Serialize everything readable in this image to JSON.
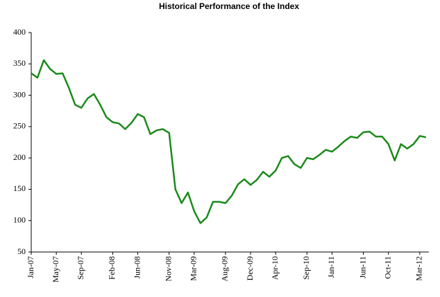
{
  "chart_data": {
    "type": "line",
    "title": "Historical Performance of the Index",
    "categories": [
      "Jan-07",
      null,
      null,
      null,
      "May-07",
      null,
      null,
      null,
      "Sep-07",
      null,
      null,
      null,
      null,
      "Feb-08",
      null,
      null,
      null,
      "Jun-08",
      null,
      null,
      null,
      null,
      "Nov-08",
      null,
      null,
      null,
      "Mar-09",
      null,
      null,
      null,
      null,
      "Aug-09",
      null,
      null,
      null,
      "Dec-09",
      null,
      null,
      null,
      "Apr-10",
      null,
      null,
      null,
      null,
      "Sep-10",
      null,
      null,
      null,
      "Jan-11",
      null,
      null,
      null,
      null,
      "Jun-11",
      null,
      null,
      null,
      "Oct-11",
      null,
      null,
      null,
      null,
      "Mar-12",
      null
    ],
    "series": [
      {
        "name": "Index",
        "color": "#1a8a1a",
        "values": [
          335,
          328,
          356,
          342,
          334,
          335,
          312,
          285,
          280,
          295,
          302,
          285,
          265,
          257,
          255,
          246,
          256,
          270,
          265,
          238,
          244,
          246,
          240,
          150,
          128,
          145,
          115,
          96,
          105,
          130,
          130,
          128,
          140,
          158,
          166,
          157,
          165,
          178,
          170,
          180,
          200,
          203,
          190,
          184,
          200,
          198,
          205,
          213,
          210,
          218,
          227,
          234,
          232,
          241,
          242,
          234,
          234,
          222,
          196,
          222,
          215,
          222,
          235,
          233
        ]
      }
    ],
    "ylim": [
      50,
      400
    ],
    "yticks": [
      50,
      100,
      150,
      200,
      250,
      300,
      350,
      400
    ]
  }
}
